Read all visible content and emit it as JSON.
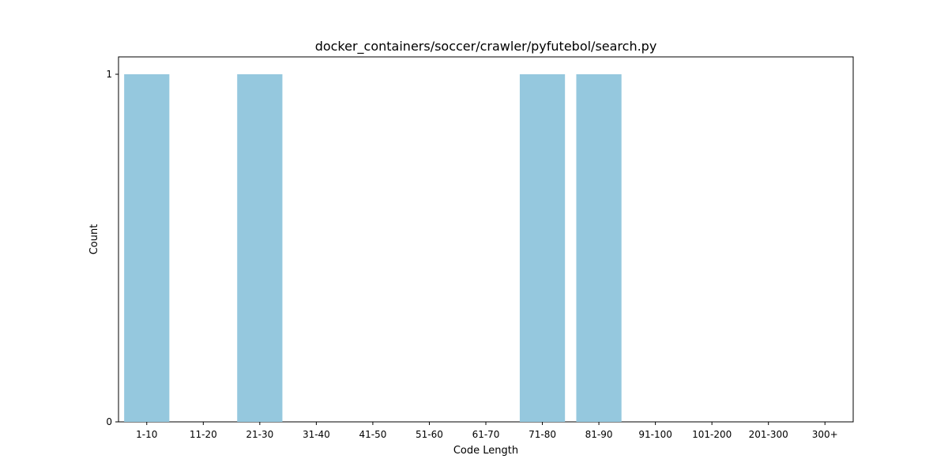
{
  "chart_data": {
    "type": "bar",
    "title": "docker_containers/soccer/crawler/pyfutebol/search.py",
    "xlabel": "Code Length",
    "ylabel": "Count",
    "categories": [
      "1-10",
      "11-20",
      "21-30",
      "31-40",
      "41-50",
      "51-60",
      "61-70",
      "71-80",
      "81-90",
      "91-100",
      "101-200",
      "201-300",
      "300+"
    ],
    "values": [
      1,
      0,
      1,
      0,
      0,
      0,
      0,
      1,
      1,
      0,
      0,
      0,
      0
    ],
    "ylim": [
      0,
      1.05
    ],
    "yticks": [
      "0",
      "1"
    ],
    "bar_color": "#95c8de",
    "grid": false,
    "legend": "none"
  }
}
